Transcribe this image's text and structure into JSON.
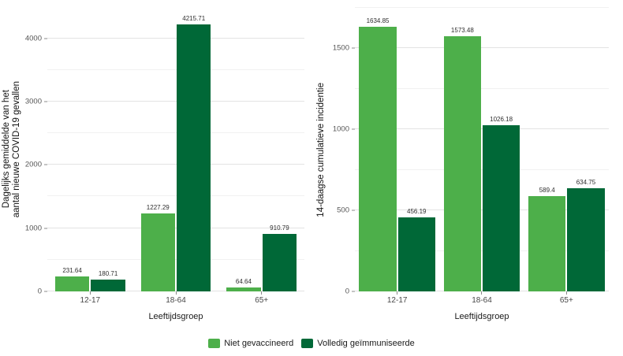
{
  "figure": {
    "background": "#ffffff"
  },
  "legend": {
    "position": "bottom-center",
    "items": [
      {
        "label": "Niet gevaccineerd",
        "color": "#4daf4a"
      },
      {
        "label": "Volledig geïmmuniseerde",
        "color": "#006837"
      }
    ]
  },
  "chart_data": [
    {
      "type": "bar",
      "title": "",
      "categories": [
        "12-17",
        "18-64",
        "65+"
      ],
      "series": [
        {
          "name": "Niet gevaccineerd",
          "color": "#4daf4a",
          "values": [
            231.64,
            1227.29,
            64.64
          ]
        },
        {
          "name": "Volledig geïmmuniseerde",
          "color": "#006837",
          "values": [
            180.71,
            4215.71,
            910.79
          ]
        }
      ],
      "xlabel": "Leeftijdsgroep",
      "ylabel": "Dagelijks gemiddelde van het aantal nieuwe COVID-19 gevallen",
      "ylabel_lines": [
        "Dagelijks gemiddelde van het",
        "aantal nieuwe COVID-19 gevallen"
      ],
      "ylim": [
        0,
        4480
      ],
      "yticks": [
        0,
        1000,
        2000,
        3000,
        4000
      ],
      "minor_tick_step": 500,
      "grid": true,
      "value_labels": true,
      "legend_position": "bottom-center"
    },
    {
      "type": "bar",
      "title": "",
      "categories": [
        "12-17",
        "18-64",
        "65+"
      ],
      "series": [
        {
          "name": "Niet gevaccineerd",
          "color": "#4daf4a",
          "values": [
            1634.85,
            1573.48,
            589.4
          ]
        },
        {
          "name": "Volledig geïmmuniseerde",
          "color": "#006837",
          "values": [
            456.19,
            1026.18,
            634.75
          ]
        }
      ],
      "xlabel": "Leeftijdsgroep",
      "ylabel": "14-daagse cumulatieve incidentie",
      "ylabel_lines": [
        "14-daagse cumulatieve incidentie"
      ],
      "ylim": [
        0,
        1750
      ],
      "yticks": [
        0,
        500,
        1000,
        1500
      ],
      "minor_tick_step": 250,
      "grid": true,
      "value_labels": true,
      "legend_position": "bottom-center"
    }
  ]
}
